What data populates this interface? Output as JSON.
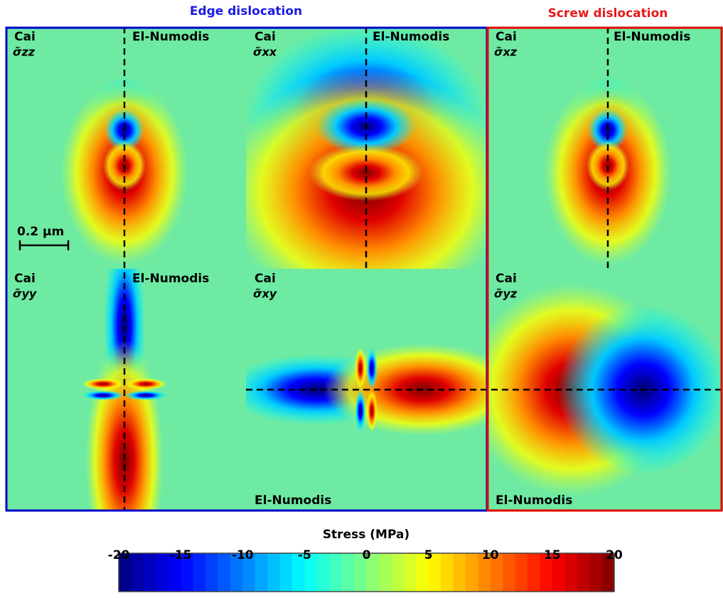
{
  "header": {
    "edge": "Edge dislocation",
    "screw": "Screw dislocation"
  },
  "panels": [
    {
      "method_a": "Cai",
      "component": "σ̃zz",
      "method_b": "El-Numodis"
    },
    {
      "method_a": "Cai",
      "component": "σ̃xx",
      "method_b": "El-Numodis"
    },
    {
      "method_a": "Cai",
      "component": "σ̃xz",
      "method_b": "El-Numodis"
    },
    {
      "method_a": "Cai",
      "component": "σ̃yy",
      "method_b": "El-Numodis"
    },
    {
      "method_a": "Cai",
      "component": "σ̃xy",
      "method_b": "El-Numodis"
    },
    {
      "method_a": "Cai",
      "component": "σ̃yz",
      "method_b": "El-Numodis"
    }
  ],
  "scale_bar": "0.2 µm",
  "colorbar": {
    "title": "Stress (MPa)",
    "lim": [
      -20,
      20
    ],
    "ticks": [
      -20,
      -15,
      -10,
      -5,
      0,
      5,
      10,
      15,
      20
    ]
  }
}
